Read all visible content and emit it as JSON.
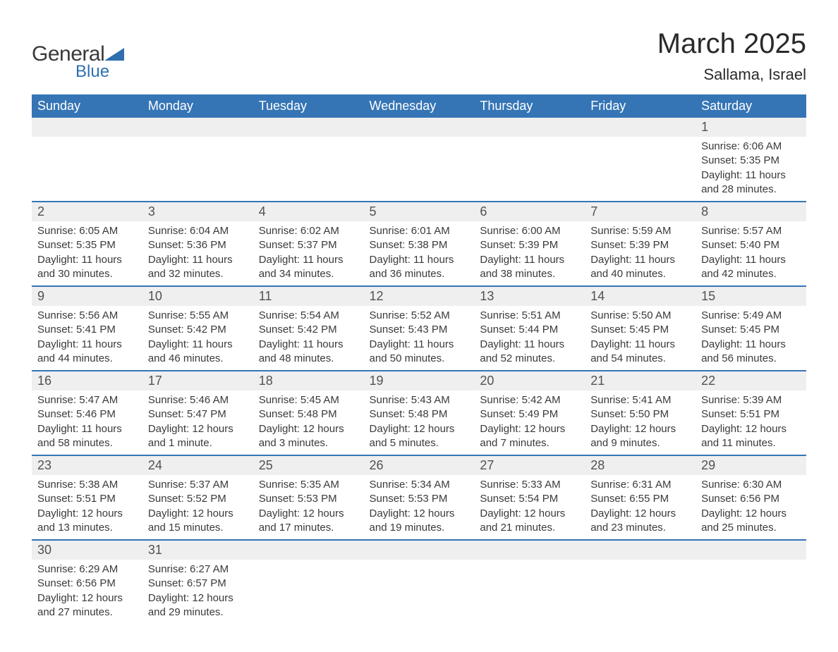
{
  "brand": {
    "name1": "General",
    "name2": "Blue",
    "triangle_color": "#2f6fae"
  },
  "title": "March 2025",
  "location": "Sallama, Israel",
  "colors": {
    "header_bg": "#3575b5",
    "header_fg": "#ffffff",
    "row_bg": "#efefef",
    "text": "#3a3a3a",
    "border": "#3575b5"
  },
  "fonts": {
    "title_size": 40,
    "location_size": 22,
    "header_size": 18,
    "daynum_size": 18,
    "detail_size": 15
  },
  "weekdays": [
    "Sunday",
    "Monday",
    "Tuesday",
    "Wednesday",
    "Thursday",
    "Friday",
    "Saturday"
  ],
  "weeks": [
    [
      null,
      null,
      null,
      null,
      null,
      null,
      {
        "n": "1",
        "sunrise": "6:06 AM",
        "sunset": "5:35 PM",
        "daylight": "11 hours and 28 minutes."
      }
    ],
    [
      {
        "n": "2",
        "sunrise": "6:05 AM",
        "sunset": "5:35 PM",
        "daylight": "11 hours and 30 minutes."
      },
      {
        "n": "3",
        "sunrise": "6:04 AM",
        "sunset": "5:36 PM",
        "daylight": "11 hours and 32 minutes."
      },
      {
        "n": "4",
        "sunrise": "6:02 AM",
        "sunset": "5:37 PM",
        "daylight": "11 hours and 34 minutes."
      },
      {
        "n": "5",
        "sunrise": "6:01 AM",
        "sunset": "5:38 PM",
        "daylight": "11 hours and 36 minutes."
      },
      {
        "n": "6",
        "sunrise": "6:00 AM",
        "sunset": "5:39 PM",
        "daylight": "11 hours and 38 minutes."
      },
      {
        "n": "7",
        "sunrise": "5:59 AM",
        "sunset": "5:39 PM",
        "daylight": "11 hours and 40 minutes."
      },
      {
        "n": "8",
        "sunrise": "5:57 AM",
        "sunset": "5:40 PM",
        "daylight": "11 hours and 42 minutes."
      }
    ],
    [
      {
        "n": "9",
        "sunrise": "5:56 AM",
        "sunset": "5:41 PM",
        "daylight": "11 hours and 44 minutes."
      },
      {
        "n": "10",
        "sunrise": "5:55 AM",
        "sunset": "5:42 PM",
        "daylight": "11 hours and 46 minutes."
      },
      {
        "n": "11",
        "sunrise": "5:54 AM",
        "sunset": "5:42 PM",
        "daylight": "11 hours and 48 minutes."
      },
      {
        "n": "12",
        "sunrise": "5:52 AM",
        "sunset": "5:43 PM",
        "daylight": "11 hours and 50 minutes."
      },
      {
        "n": "13",
        "sunrise": "5:51 AM",
        "sunset": "5:44 PM",
        "daylight": "11 hours and 52 minutes."
      },
      {
        "n": "14",
        "sunrise": "5:50 AM",
        "sunset": "5:45 PM",
        "daylight": "11 hours and 54 minutes."
      },
      {
        "n": "15",
        "sunrise": "5:49 AM",
        "sunset": "5:45 PM",
        "daylight": "11 hours and 56 minutes."
      }
    ],
    [
      {
        "n": "16",
        "sunrise": "5:47 AM",
        "sunset": "5:46 PM",
        "daylight": "11 hours and 58 minutes."
      },
      {
        "n": "17",
        "sunrise": "5:46 AM",
        "sunset": "5:47 PM",
        "daylight": "12 hours and 1 minute."
      },
      {
        "n": "18",
        "sunrise": "5:45 AM",
        "sunset": "5:48 PM",
        "daylight": "12 hours and 3 minutes."
      },
      {
        "n": "19",
        "sunrise": "5:43 AM",
        "sunset": "5:48 PM",
        "daylight": "12 hours and 5 minutes."
      },
      {
        "n": "20",
        "sunrise": "5:42 AM",
        "sunset": "5:49 PM",
        "daylight": "12 hours and 7 minutes."
      },
      {
        "n": "21",
        "sunrise": "5:41 AM",
        "sunset": "5:50 PM",
        "daylight": "12 hours and 9 minutes."
      },
      {
        "n": "22",
        "sunrise": "5:39 AM",
        "sunset": "5:51 PM",
        "daylight": "12 hours and 11 minutes."
      }
    ],
    [
      {
        "n": "23",
        "sunrise": "5:38 AM",
        "sunset": "5:51 PM",
        "daylight": "12 hours and 13 minutes."
      },
      {
        "n": "24",
        "sunrise": "5:37 AM",
        "sunset": "5:52 PM",
        "daylight": "12 hours and 15 minutes."
      },
      {
        "n": "25",
        "sunrise": "5:35 AM",
        "sunset": "5:53 PM",
        "daylight": "12 hours and 17 minutes."
      },
      {
        "n": "26",
        "sunrise": "5:34 AM",
        "sunset": "5:53 PM",
        "daylight": "12 hours and 19 minutes."
      },
      {
        "n": "27",
        "sunrise": "5:33 AM",
        "sunset": "5:54 PM",
        "daylight": "12 hours and 21 minutes."
      },
      {
        "n": "28",
        "sunrise": "6:31 AM",
        "sunset": "6:55 PM",
        "daylight": "12 hours and 23 minutes."
      },
      {
        "n": "29",
        "sunrise": "6:30 AM",
        "sunset": "6:56 PM",
        "daylight": "12 hours and 25 minutes."
      }
    ],
    [
      {
        "n": "30",
        "sunrise": "6:29 AM",
        "sunset": "6:56 PM",
        "daylight": "12 hours and 27 minutes."
      },
      {
        "n": "31",
        "sunrise": "6:27 AM",
        "sunset": "6:57 PM",
        "daylight": "12 hours and 29 minutes."
      },
      null,
      null,
      null,
      null,
      null
    ]
  ],
  "labels": {
    "sunrise": "Sunrise: ",
    "sunset": "Sunset: ",
    "daylight": "Daylight: "
  }
}
